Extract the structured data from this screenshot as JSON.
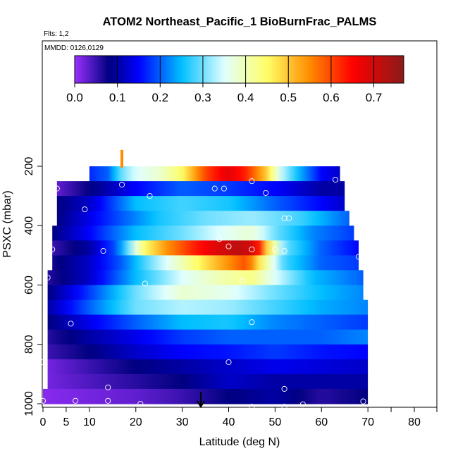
{
  "chart_data": {
    "type": "heatmap",
    "title": "ATOM2 Northeast_Pacific_1 BioBurnFrac_PALMS",
    "flights_note": "Flts: 1,2",
    "dates_note": "MMDD: 0126,0129",
    "xlabel": "Latitude (deg N)",
    "ylabel": "PSXC (mbar)",
    "xlim": [
      0,
      85
    ],
    "ylim": [
      1000,
      50
    ],
    "x_ticks": [
      0,
      5,
      10,
      20,
      30,
      40,
      50,
      60,
      70,
      80
    ],
    "x_minor_ticks": [
      75,
      85
    ],
    "y_ticks": [
      200,
      400,
      600,
      800,
      1000
    ],
    "colorbar": {
      "min": 0,
      "max": 0.77,
      "ticks": [
        0.0,
        0.1,
        0.2,
        0.3,
        0.4,
        0.5,
        0.6,
        0.7
      ],
      "tick_labels": [
        "0.0",
        "0.1",
        "0.2",
        "0.3",
        "0.4",
        "0.5",
        "0.6",
        "0.7"
      ],
      "stops": [
        {
          "v": 0.0,
          "color": "#9b30ff"
        },
        {
          "v": 0.08,
          "color": "#000080"
        },
        {
          "v": 0.15,
          "color": "#0000ff"
        },
        {
          "v": 0.25,
          "color": "#00bfff"
        },
        {
          "v": 0.35,
          "color": "#e0ffff"
        },
        {
          "v": 0.45,
          "color": "#ffff66"
        },
        {
          "v": 0.55,
          "color": "#ff8c00"
        },
        {
          "v": 0.65,
          "color": "#ff0000"
        },
        {
          "v": 0.77,
          "color": "#8b1a1a"
        }
      ]
    },
    "layers": [
      {
        "p": 225,
        "lat": [
          10,
          64
        ],
        "v": [
          [
            10,
            0.17
          ],
          [
            14,
            0.2
          ],
          [
            17,
            0.3
          ],
          [
            20,
            0.35
          ],
          [
            25,
            0.38
          ],
          [
            30,
            0.45
          ],
          [
            35,
            0.6
          ],
          [
            40,
            0.68
          ],
          [
            44,
            0.62
          ],
          [
            48,
            0.5
          ],
          [
            51,
            0.35
          ],
          [
            55,
            0.25
          ],
          [
            60,
            0.15
          ],
          [
            64,
            0.12
          ]
        ]
      },
      {
        "p": 275,
        "lat": [
          3,
          65
        ],
        "v": [
          [
            3,
            0.03
          ],
          [
            10,
            0.08
          ],
          [
            20,
            0.15
          ],
          [
            30,
            0.2
          ],
          [
            40,
            0.18
          ],
          [
            50,
            0.15
          ],
          [
            60,
            0.1
          ],
          [
            65,
            0.1
          ]
        ]
      },
      {
        "p": 325,
        "lat": [
          3,
          65
        ],
        "v": [
          [
            3,
            0.08
          ],
          [
            10,
            0.12
          ],
          [
            20,
            0.25
          ],
          [
            30,
            0.28
          ],
          [
            40,
            0.26
          ],
          [
            50,
            0.2
          ],
          [
            60,
            0.15
          ],
          [
            65,
            0.12
          ]
        ]
      },
      {
        "p": 375,
        "lat": [
          3,
          66
        ],
        "v": [
          [
            3,
            0.08
          ],
          [
            15,
            0.18
          ],
          [
            25,
            0.26
          ],
          [
            35,
            0.3
          ],
          [
            45,
            0.32
          ],
          [
            55,
            0.28
          ],
          [
            66,
            0.2
          ]
        ]
      },
      {
        "p": 425,
        "lat": [
          2,
          67
        ],
        "v": [
          [
            2,
            0.08
          ],
          [
            10,
            0.15
          ],
          [
            20,
            0.25
          ],
          [
            30,
            0.3
          ],
          [
            38,
            0.35
          ],
          [
            45,
            0.38
          ],
          [
            50,
            0.3
          ],
          [
            58,
            0.22
          ],
          [
            67,
            0.18
          ]
        ]
      },
      {
        "p": 475,
        "lat": [
          2,
          68
        ],
        "v": [
          [
            2,
            0.05
          ],
          [
            10,
            0.1
          ],
          [
            16,
            0.2
          ],
          [
            22,
            0.45
          ],
          [
            27,
            0.55
          ],
          [
            32,
            0.62
          ],
          [
            37,
            0.68
          ],
          [
            42,
            0.72
          ],
          [
            46,
            0.68
          ],
          [
            48,
            0.5
          ],
          [
            52,
            0.3
          ],
          [
            60,
            0.2
          ],
          [
            68,
            0.15
          ]
        ]
      },
      {
        "p": 525,
        "lat": [
          2,
          68
        ],
        "v": [
          [
            2,
            0.07
          ],
          [
            10,
            0.12
          ],
          [
            17,
            0.2
          ],
          [
            23,
            0.3
          ],
          [
            30,
            0.4
          ],
          [
            38,
            0.52
          ],
          [
            44,
            0.6
          ],
          [
            47,
            0.45
          ],
          [
            52,
            0.28
          ],
          [
            60,
            0.2
          ],
          [
            68,
            0.18
          ]
        ]
      },
      {
        "p": 575,
        "lat": [
          1,
          69
        ],
        "v": [
          [
            1,
            0.06
          ],
          [
            10,
            0.12
          ],
          [
            20,
            0.25
          ],
          [
            30,
            0.35
          ],
          [
            38,
            0.4
          ],
          [
            45,
            0.43
          ],
          [
            50,
            0.35
          ],
          [
            58,
            0.25
          ],
          [
            69,
            0.2
          ]
        ]
      },
      {
        "p": 625,
        "lat": [
          1,
          69
        ],
        "v": [
          [
            1,
            0.08
          ],
          [
            10,
            0.18
          ],
          [
            20,
            0.3
          ],
          [
            30,
            0.38
          ],
          [
            40,
            0.36
          ],
          [
            50,
            0.3
          ],
          [
            60,
            0.25
          ],
          [
            69,
            0.22
          ]
        ]
      },
      {
        "p": 675,
        "lat": [
          1,
          70
        ],
        "v": [
          [
            1,
            0.1
          ],
          [
            10,
            0.2
          ],
          [
            20,
            0.3
          ],
          [
            30,
            0.33
          ],
          [
            40,
            0.32
          ],
          [
            50,
            0.28
          ],
          [
            60,
            0.24
          ],
          [
            70,
            0.22
          ]
        ]
      },
      {
        "p": 725,
        "lat": [
          1,
          70
        ],
        "v": [
          [
            1,
            0.08
          ],
          [
            10,
            0.14
          ],
          [
            20,
            0.2
          ],
          [
            30,
            0.25
          ],
          [
            40,
            0.26
          ],
          [
            50,
            0.22
          ],
          [
            60,
            0.2
          ],
          [
            70,
            0.18
          ]
        ]
      },
      {
        "p": 775,
        "lat": [
          1,
          70
        ],
        "v": [
          [
            1,
            0.06
          ],
          [
            10,
            0.1
          ],
          [
            20,
            0.14
          ],
          [
            30,
            0.18
          ],
          [
            40,
            0.2
          ],
          [
            50,
            0.2
          ],
          [
            60,
            0.2
          ],
          [
            70,
            0.22
          ]
        ]
      },
      {
        "p": 825,
        "lat": [
          1,
          70
        ],
        "v": [
          [
            1,
            0.05
          ],
          [
            10,
            0.08
          ],
          [
            20,
            0.12
          ],
          [
            30,
            0.15
          ],
          [
            40,
            0.16
          ],
          [
            50,
            0.18
          ],
          [
            60,
            0.16
          ],
          [
            70,
            0.15
          ]
        ]
      },
      {
        "p": 875,
        "lat": [
          1,
          70
        ],
        "v": [
          [
            1,
            0.02
          ],
          [
            10,
            0.05
          ],
          [
            20,
            0.08
          ],
          [
            30,
            0.1
          ],
          [
            40,
            0.12
          ],
          [
            50,
            0.14
          ],
          [
            60,
            0.13
          ],
          [
            70,
            0.12
          ]
        ]
      },
      {
        "p": 925,
        "lat": [
          1,
          70
        ],
        "v": [
          [
            1,
            0.02
          ],
          [
            10,
            0.04
          ],
          [
            20,
            0.06
          ],
          [
            30,
            0.08
          ],
          [
            40,
            0.12
          ],
          [
            50,
            0.1
          ],
          [
            60,
            0.1
          ],
          [
            70,
            0.1
          ]
        ]
      },
      {
        "p": 975,
        "lat": [
          0,
          70
        ],
        "v": [
          [
            0,
            0.01
          ],
          [
            10,
            0.02
          ],
          [
            20,
            0.03
          ],
          [
            30,
            0.05
          ],
          [
            40,
            0.08
          ],
          [
            50,
            0.1
          ],
          [
            60,
            0.06
          ],
          [
            70,
            0.08
          ]
        ]
      }
    ],
    "sample_points": [
      [
        17,
        262
      ],
      [
        3,
        275
      ],
      [
        23,
        300
      ],
      [
        37,
        275
      ],
      [
        39,
        275
      ],
      [
        45,
        250
      ],
      [
        48,
        290
      ],
      [
        63,
        245
      ],
      [
        9,
        345
      ],
      [
        52,
        375
      ],
      [
        53,
        375
      ],
      [
        38,
        445
      ],
      [
        2,
        480
      ],
      [
        13,
        485
      ],
      [
        40,
        470
      ],
      [
        45,
        480
      ],
      [
        50,
        480
      ],
      [
        52,
        485
      ],
      [
        68,
        505
      ],
      [
        1,
        575
      ],
      [
        22,
        595
      ],
      [
        43,
        585
      ],
      [
        6,
        730
      ],
      [
        45,
        725
      ],
      [
        0,
        860
      ],
      [
        40,
        860
      ],
      [
        14,
        945
      ],
      [
        52,
        950
      ],
      [
        0,
        990
      ],
      [
        7,
        990
      ],
      [
        14,
        990
      ],
      [
        21,
        1000
      ],
      [
        45,
        1010
      ],
      [
        52,
        1010
      ],
      [
        56,
        1002
      ],
      [
        69,
        992
      ]
    ],
    "markers": {
      "orange_bar": {
        "lat": 17,
        "p_top": 145,
        "p_bottom": 205,
        "color": "#ff8c00"
      },
      "black_arrow": {
        "lat": 34,
        "p_top": 960,
        "p_bottom": 1010,
        "color": "#000000"
      }
    }
  }
}
